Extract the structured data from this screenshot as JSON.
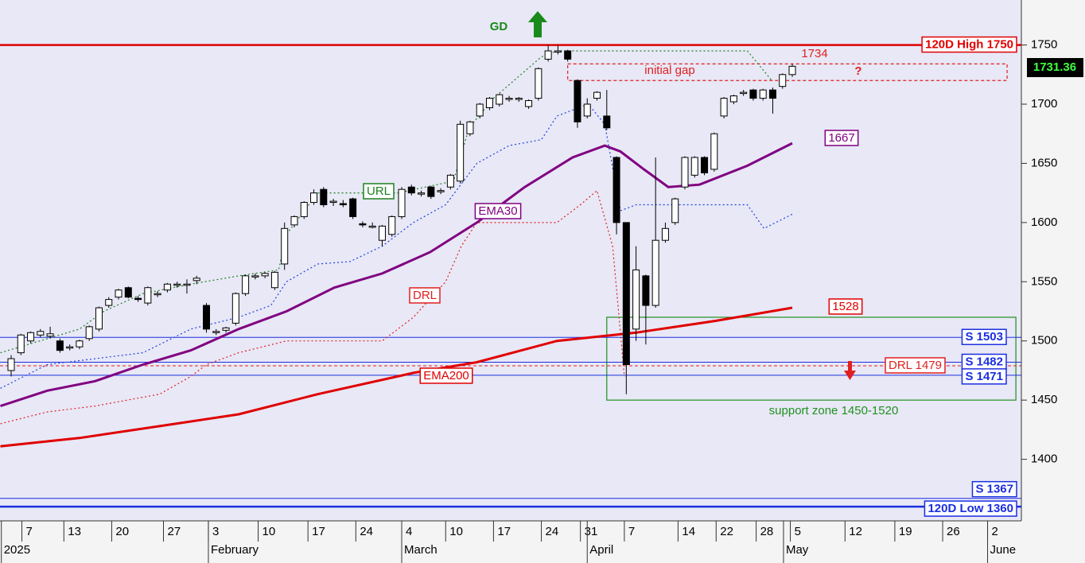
{
  "chart_data": {
    "type": "candlestick",
    "xlim": [
      -1.14,
      103.46
    ],
    "ylim": [
      1348,
      1788
    ],
    "yticks": [
      1400,
      1450,
      1500,
      1550,
      1600,
      1650,
      1700,
      1750
    ],
    "xticks": [
      {
        "value": 1.1,
        "label": "7"
      },
      {
        "value": 5.4,
        "label": "13"
      },
      {
        "value": 10.3,
        "label": "20"
      },
      {
        "value": 15.6,
        "label": "27"
      },
      {
        "value": 20.2,
        "label": "3"
      },
      {
        "value": 25.3,
        "label": "10"
      },
      {
        "value": 30.4,
        "label": "17"
      },
      {
        "value": 35.3,
        "label": "24"
      },
      {
        "value": 40,
        "label": "4"
      },
      {
        "value": 44.5,
        "label": "10"
      },
      {
        "value": 49.4,
        "label": "17"
      },
      {
        "value": 54.3,
        "label": "24"
      },
      {
        "value": 58.3,
        "label": "31"
      },
      {
        "value": 62.8,
        "label": "7"
      },
      {
        "value": 68.3,
        "label": "14"
      },
      {
        "value": 72.2,
        "label": "22"
      },
      {
        "value": 76.3,
        "label": "28"
      },
      {
        "value": 79.8,
        "label": "5"
      },
      {
        "value": 85.4,
        "label": "12"
      },
      {
        "value": 90.5,
        "label": "19"
      },
      {
        "value": 95.4,
        "label": "26"
      },
      {
        "value": 100,
        "label": "2"
      }
    ],
    "month_ticks": [
      {
        "value": -1,
        "label": "2025"
      },
      {
        "value": 20.2,
        "label": "February"
      },
      {
        "value": 40,
        "label": "March"
      },
      {
        "value": 59,
        "label": "April"
      },
      {
        "value": 79.1,
        "label": "May"
      },
      {
        "value": 100,
        "label": "June"
      }
    ],
    "candles": {
      "x": [
        0,
        1,
        2,
        3,
        4,
        5,
        6,
        7,
        8,
        9,
        10,
        11,
        12,
        13,
        14,
        15,
        16,
        17,
        18,
        19,
        20,
        21,
        22,
        23,
        24,
        25,
        26,
        27,
        28,
        29,
        30,
        31,
        32,
        33,
        34,
        35,
        36,
        37,
        38,
        39,
        40,
        41,
        42,
        43,
        44,
        45,
        46,
        47,
        48,
        49,
        50,
        51,
        52,
        53,
        54,
        55,
        56,
        57,
        58,
        59,
        60,
        61,
        62,
        63,
        64,
        65,
        66,
        67,
        68,
        69,
        70,
        71,
        72,
        73,
        74,
        75,
        76,
        77,
        78,
        79,
        80
      ],
      "open": [
        1475,
        1490,
        1500,
        1505,
        1504,
        1500,
        1494,
        1495,
        1502,
        1510,
        1530,
        1537,
        1545,
        1536,
        1532,
        1539,
        1543,
        1547,
        1547,
        1551,
        1530,
        1507,
        1509,
        1515,
        1540,
        1554,
        1555,
        1545,
        1565,
        1598,
        1605,
        1617,
        1628,
        1617,
        1616,
        1620,
        1599,
        1597,
        1585,
        1590,
        1605,
        1630,
        1624,
        1630,
        1626,
        1630,
        1635,
        1675,
        1690,
        1697,
        1700,
        1704,
        1704,
        1698,
        1705,
        1738,
        1744,
        1745,
        1720,
        1690,
        1705,
        1690,
        1655,
        1600,
        1510,
        1555,
        1530,
        1585,
        1600,
        1630,
        1640,
        1655,
        1645,
        1690,
        1702,
        1709,
        1712,
        1705,
        1712,
        1715,
        1725
      ],
      "high": [
        1488,
        1506,
        1508,
        1510,
        1512,
        1502,
        1497,
        1501,
        1513,
        1529,
        1537,
        1544,
        1546,
        1538,
        1546,
        1542,
        1549,
        1550,
        1552,
        1555,
        1532,
        1510,
        1512,
        1541,
        1556,
        1557,
        1558,
        1559,
        1600,
        1606,
        1618,
        1628,
        1630,
        1620,
        1619,
        1621,
        1601,
        1600,
        1598,
        1606,
        1630,
        1632,
        1627,
        1631,
        1629,
        1641,
        1686,
        1686,
        1701,
        1706,
        1709,
        1707,
        1706,
        1704,
        1731,
        1750,
        1750,
        1746,
        1721,
        1705,
        1711,
        1712,
        1656,
        1600,
        1580,
        1556,
        1655,
        1600,
        1621,
        1656,
        1656,
        1656,
        1676,
        1706,
        1708,
        1712,
        1713,
        1713,
        1714,
        1726,
        1734
      ],
      "low": [
        1470,
        1488,
        1498,
        1503,
        1502,
        1490,
        1492,
        1493,
        1500,
        1508,
        1528,
        1535,
        1536,
        1533,
        1530,
        1537,
        1541,
        1545,
        1540,
        1548,
        1507,
        1505,
        1507,
        1513,
        1538,
        1552,
        1553,
        1543,
        1560,
        1596,
        1603,
        1615,
        1613,
        1614,
        1613,
        1603,
        1596,
        1595,
        1580,
        1588,
        1603,
        1623,
        1622,
        1620,
        1624,
        1628,
        1633,
        1673,
        1688,
        1695,
        1698,
        1702,
        1702,
        1696,
        1703,
        1736,
        1742,
        1736,
        1680,
        1688,
        1703,
        1678,
        1590,
        1455,
        1500,
        1497,
        1528,
        1583,
        1598,
        1628,
        1638,
        1640,
        1643,
        1688,
        1700,
        1707,
        1703,
        1703,
        1692,
        1713,
        1723
      ],
      "close": [
        1485,
        1505,
        1507,
        1508,
        1506,
        1492,
        1495,
        1500,
        1512,
        1528,
        1535,
        1543,
        1537,
        1535,
        1545,
        1540,
        1548,
        1548,
        1548,
        1553,
        1510,
        1508,
        1511,
        1540,
        1555,
        1555,
        1557,
        1558,
        1595,
        1605,
        1617,
        1625,
        1615,
        1618,
        1615,
        1605,
        1598,
        1597,
        1597,
        1605,
        1628,
        1625,
        1625,
        1622,
        1627,
        1640,
        1683,
        1685,
        1700,
        1705,
        1708,
        1705,
        1705,
        1703,
        1730,
        1745,
        1745,
        1738,
        1685,
        1700,
        1710,
        1680,
        1600,
        1480,
        1560,
        1530,
        1585,
        1595,
        1620,
        1655,
        1655,
        1642,
        1675,
        1705,
        1707,
        1710,
        1705,
        1712,
        1705,
        1725,
        1732
      ]
    },
    "lines": [
      {
        "name": "URL",
        "color": "#208020",
        "style": "dotted",
        "x": [
          -1.1,
          7,
          9.5,
          13.5,
          18.4,
          23.3,
          27.4,
          28.2,
          31.4,
          39.6,
          45.3,
          46.9,
          49.4,
          54.3,
          55.9,
          75.4,
          77.9
        ],
        "values": [
          1490,
          1510,
          1525,
          1540,
          1548,
          1555,
          1560,
          1590,
          1625,
          1625,
          1635,
          1680,
          1705,
          1740,
          1745,
          1745,
          1720
        ]
      },
      {
        "color": "#2040e0",
        "style": "dotted",
        "x": [
          -1.1,
          3.7,
          8.6,
          13.5,
          18.4,
          23.3,
          26.6,
          28.2,
          31.4,
          34.7,
          38,
          41.2,
          44.5,
          47.7,
          51,
          54.3,
          55.9,
          59.1,
          60.8,
          62.4,
          64,
          75.4,
          77.1,
          80
        ],
        "values": [
          1460,
          1480,
          1485,
          1490,
          1510,
          1520,
          1530,
          1550,
          1565,
          1567,
          1580,
          1600,
          1615,
          1650,
          1665,
          1670,
          1690,
          1700,
          1683,
          1610,
          1615,
          1615,
          1595,
          1607
        ]
      },
      {
        "name": "DRL",
        "color": "#e02020",
        "style": "dotted",
        "x": [
          -1.1,
          3.7,
          8.6,
          15.2,
          18.4,
          20,
          23.3,
          28.2,
          31.4,
          38,
          41.2,
          44.5,
          46.1,
          47.7,
          55.9,
          58.3,
          60,
          61.6,
          62.8
        ],
        "values": [
          1430,
          1440,
          1445,
          1455,
          1470,
          1480,
          1490,
          1500,
          1500,
          1500,
          1520,
          1550,
          1580,
          1600,
          1600,
          1615,
          1627,
          1580,
          1470
        ]
      },
      {
        "name": "EMA30",
        "color": "#800080",
        "style": "solid",
        "end_label": "1667",
        "x": [
          -1.1,
          3.7,
          8.6,
          13.5,
          18.4,
          23.3,
          28.2,
          33.1,
          38,
          42.9,
          47.7,
          52.6,
          57.5,
          60.8,
          62.4,
          64.8,
          67.3,
          70.5,
          75.4,
          80
        ],
        "values": [
          1445,
          1458,
          1466,
          1480,
          1492,
          1510,
          1525,
          1545,
          1557,
          1575,
          1600,
          1630,
          1655,
          1665,
          1660,
          1645,
          1630,
          1632,
          1648,
          1667
        ]
      },
      {
        "name": "EMA200",
        "color": "#e00000",
        "style": "solid",
        "end_label": "1528",
        "x": [
          -1.1,
          7,
          15.2,
          23.3,
          31.4,
          41.2,
          47.7,
          55.9,
          64,
          72.2,
          80
        ],
        "values": [
          1411,
          1418,
          1428,
          1438,
          1455,
          1473,
          1482,
          1500,
          1507,
          1517,
          1528
        ]
      }
    ],
    "levels": [
      {
        "label": "120D High 1750",
        "value": 1750,
        "color": "#e00000",
        "style": "thick"
      },
      {
        "label": "S 1503",
        "value": 1503,
        "color": "#1a2ee0",
        "style": "solid"
      },
      {
        "label": "S 1482",
        "value": 1482,
        "color": "#1a2ee0",
        "style": "solid"
      },
      {
        "label": "DRL 1479",
        "value": 1479,
        "color": "#e02020",
        "style": "dashed"
      },
      {
        "label": "S 1471",
        "value": 1471,
        "color": "#1a2ee0",
        "style": "solid"
      },
      {
        "label": "S 1367",
        "value": 1367,
        "color": "#1a2ee0",
        "style": "solid"
      },
      {
        "label": "120D Low 1360",
        "value": 1360,
        "color": "#1a2ee0",
        "style": "thick"
      }
    ],
    "boxes": [
      {
        "label": "initial gap",
        "x0": 57,
        "x1": 102,
        "low": 1720,
        "high": 1734,
        "color": "#e02020"
      },
      {
        "label": "support zone 1450-1520",
        "x0": 61,
        "x1": 102.9,
        "low": 1450,
        "high": 1520,
        "color": "#209020"
      }
    ],
    "last_price": 1731.36,
    "annotations": {
      "signal": "GD",
      "high_mark": "1734",
      "question": "?"
    }
  }
}
